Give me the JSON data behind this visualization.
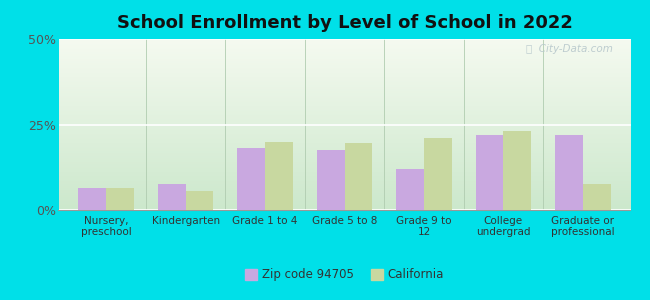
{
  "title": "School Enrollment by Level of School in 2022",
  "categories": [
    "Nursery,\npreschool",
    "Kindergarten",
    "Grade 1 to 4",
    "Grade 5 to 8",
    "Grade 9 to\n12",
    "College\nundergrad",
    "Graduate or\nprofessional"
  ],
  "zip_values": [
    6.5,
    7.5,
    18.0,
    17.5,
    12.0,
    22.0,
    22.0
  ],
  "ca_values": [
    6.5,
    5.5,
    20.0,
    19.5,
    21.0,
    23.0,
    7.5
  ],
  "zip_color": "#c9a8e0",
  "ca_color": "#c8d8a0",
  "ylim": [
    0,
    50
  ],
  "yticks": [
    0,
    25,
    50
  ],
  "ytick_labels": [
    "0%",
    "25%",
    "50%"
  ],
  "background_outer": "#00e0e8",
  "grid_color": "#ffffff",
  "title_color": "#111111",
  "legend_zip_label": "Zip code 94705",
  "legend_ca_label": "California",
  "bar_width": 0.35,
  "watermark_text": "ⓘ  City-Data.com",
  "watermark_color": "#b8c8cc",
  "plot_bg_top": "#f5faf0",
  "plot_bg_bottom": "#cce8cc",
  "divider_color": "#b0ccb0",
  "bottom_line_color": "#999999"
}
